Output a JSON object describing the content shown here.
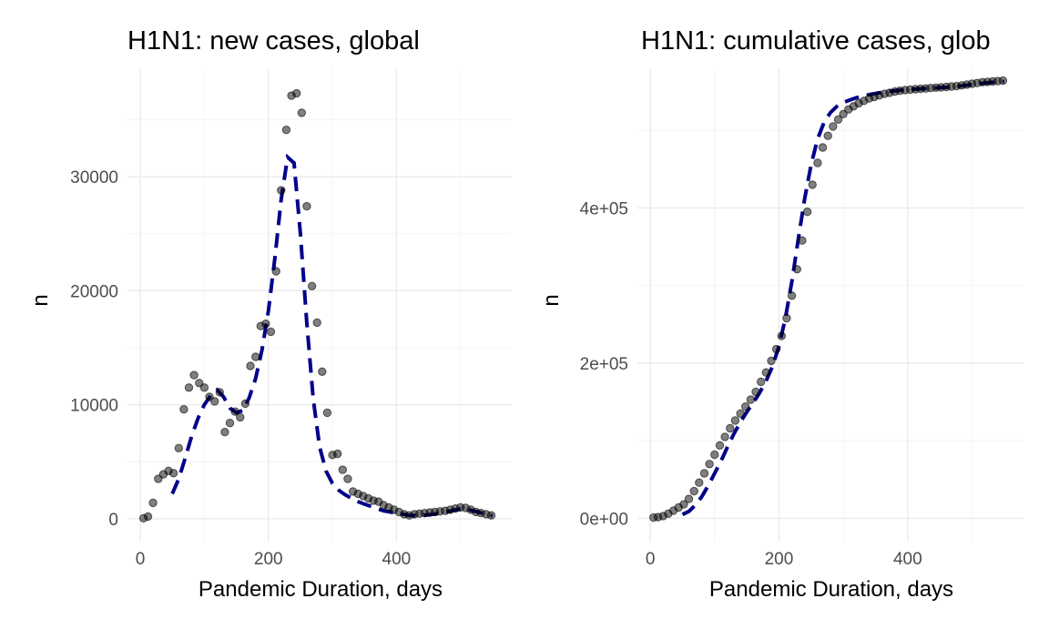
{
  "colors": {
    "point": "#000000",
    "fit_line": "#00008b",
    "grid": "#ebebeb",
    "background": "#ffffff"
  },
  "chart_data": [
    {
      "type": "scatter",
      "title": "H1N1: new cases, global",
      "xlabel": "Pandemic Duration, days",
      "ylabel": "n",
      "xlim": [
        -20,
        580
      ],
      "ylim": [
        -2000,
        39500
      ],
      "x_ticks": [
        0,
        200,
        400
      ],
      "x_tick_labels": [
        "0",
        "200",
        "400"
      ],
      "y_ticks": [
        0,
        10000,
        20000,
        30000
      ],
      "y_tick_labels": [
        "0",
        "10000",
        "20000",
        "30000"
      ],
      "grid": true,
      "legend": "none",
      "series": [
        {
          "kind": "points",
          "x": [
            5,
            12,
            20,
            28,
            36,
            44,
            52,
            60,
            68,
            76,
            84,
            92,
            100,
            108,
            116,
            124,
            132,
            140,
            148,
            156,
            164,
            172,
            180,
            188,
            196,
            204,
            212,
            220,
            228,
            236,
            244,
            252,
            260,
            268,
            276,
            284,
            292,
            300,
            308,
            316,
            324,
            332,
            340,
            348,
            356,
            364,
            372,
            380,
            388,
            396,
            404,
            412,
            420,
            428,
            436,
            444,
            452,
            460,
            468,
            476,
            484,
            492,
            500,
            508,
            516,
            524,
            532,
            540,
            548
          ],
          "y": [
            50,
            200,
            1400,
            3500,
            3900,
            4200,
            4000,
            6200,
            9600,
            11500,
            12600,
            11900,
            11500,
            10700,
            10300,
            11100,
            7600,
            8400,
            9400,
            8900,
            10100,
            13400,
            14200,
            16900,
            17100,
            16400,
            21700,
            28800,
            34100,
            37100,
            37300,
            35600,
            27400,
            20400,
            17200,
            12900,
            9300,
            5600,
            5700,
            4300,
            3500,
            2400,
            2200,
            2000,
            1800,
            1600,
            1500,
            1200,
            1000,
            800,
            600,
            400,
            300,
            400,
            450,
            500,
            550,
            600,
            650,
            700,
            800,
            900,
            1000,
            950,
            800,
            600,
            500,
            400,
            300
          ]
        },
        {
          "kind": "dashed-fit",
          "x": [
            50,
            60,
            70,
            80,
            90,
            100,
            110,
            120,
            130,
            140,
            150,
            160,
            170,
            180,
            190,
            200,
            210,
            220,
            230,
            240,
            250,
            260,
            270,
            280,
            290,
            300,
            310,
            320,
            330,
            340,
            350,
            360,
            370,
            380,
            390,
            400,
            410,
            420,
            430,
            440,
            450,
            460,
            470,
            480,
            490,
            500,
            510,
            520,
            530,
            540,
            550
          ],
          "y": [
            2200,
            3500,
            5300,
            7200,
            8800,
            10000,
            10800,
            11300,
            10700,
            9700,
            9300,
            9500,
            10600,
            12300,
            14800,
            18200,
            22800,
            28000,
            31700,
            31200,
            25000,
            17200,
            10500,
            6300,
            4200,
            3100,
            2500,
            2100,
            1800,
            1500,
            1300,
            1100,
            900,
            700,
            600,
            500,
            400,
            300,
            280,
            300,
            350,
            420,
            520,
            620,
            750,
            850,
            850,
            700,
            550,
            400,
            250
          ]
        }
      ]
    },
    {
      "type": "scatter",
      "title": "H1N1: cumulative cases, glob",
      "xlabel": "Pandemic Duration, days",
      "ylabel": "n",
      "xlim": [
        -20,
        580
      ],
      "ylim": [
        -30000,
        580000
      ],
      "x_ticks": [
        0,
        200,
        400
      ],
      "x_tick_labels": [
        "0",
        "200",
        "400"
      ],
      "y_ticks": [
        0,
        200000,
        400000
      ],
      "y_tick_labels": [
        "0e+00",
        "2e+05",
        "4e+05"
      ],
      "grid": true,
      "legend": "none",
      "series": [
        {
          "kind": "points",
          "x": [
            5,
            12,
            20,
            28,
            36,
            44,
            52,
            60,
            68,
            76,
            84,
            92,
            100,
            108,
            116,
            124,
            132,
            140,
            148,
            156,
            164,
            172,
            180,
            188,
            196,
            204,
            212,
            220,
            228,
            236,
            244,
            252,
            260,
            268,
            276,
            284,
            292,
            300,
            308,
            316,
            324,
            332,
            340,
            348,
            356,
            364,
            372,
            380,
            388,
            396,
            404,
            412,
            420,
            428,
            436,
            444,
            452,
            460,
            468,
            476,
            484,
            492,
            500,
            508,
            516,
            524,
            532,
            540,
            548
          ],
          "y": [
            1000,
            1500,
            3000,
            6000,
            10000,
            14000,
            18000,
            25000,
            35000,
            46000,
            58000,
            70000,
            82000,
            94000,
            105000,
            116000,
            126000,
            135000,
            144000,
            153000,
            163000,
            176000,
            188000,
            203000,
            218000,
            235000,
            258000,
            287000,
            321000,
            358000,
            395000,
            430000,
            458000,
            478000,
            493000,
            505000,
            514000,
            521000,
            527000,
            531000,
            535000,
            538000,
            541000,
            543000,
            545000,
            547000,
            548500,
            550000,
            551000,
            552000,
            552500,
            553000,
            553500,
            554000,
            554500,
            555000,
            555500,
            556000,
            556500,
            557000,
            558000,
            559000,
            560000,
            561000,
            562000,
            562500,
            563000,
            563500,
            564000
          ]
        },
        {
          "kind": "dashed-fit",
          "x": [
            50,
            60,
            70,
            80,
            90,
            100,
            110,
            120,
            130,
            140,
            150,
            160,
            170,
            180,
            190,
            200,
            210,
            220,
            230,
            240,
            250,
            260,
            270,
            280,
            290,
            300,
            320,
            340,
            360,
            380,
            400,
            420,
            440,
            460,
            480,
            500,
            520,
            540,
            550
          ],
          "y": [
            5000,
            9000,
            17000,
            28000,
            42000,
            58000,
            74000,
            92000,
            109000,
            124000,
            137000,
            149000,
            162000,
            177000,
            196000,
            222000,
            258000,
            305000,
            360000,
            412000,
            456000,
            489000,
            510000,
            523000,
            531000,
            536000,
            542000,
            546000,
            549000,
            551000,
            552500,
            553500,
            554500,
            555500,
            557000,
            559000,
            561000,
            562500,
            563000
          ]
        }
      ]
    }
  ]
}
